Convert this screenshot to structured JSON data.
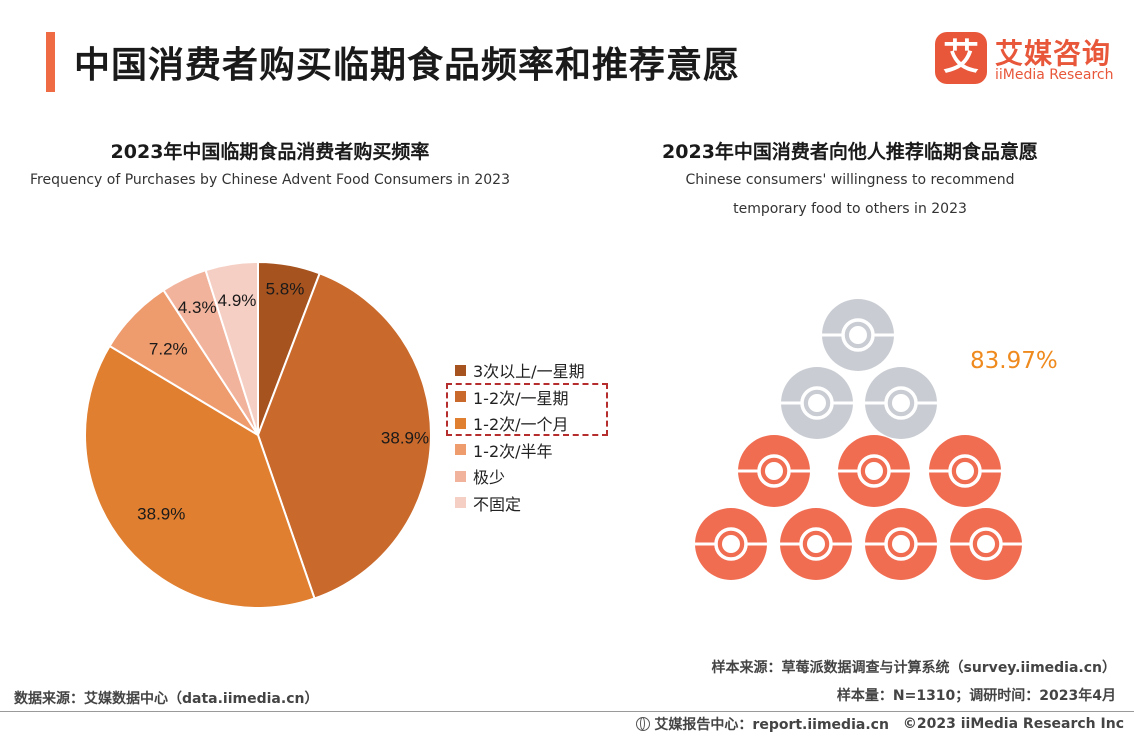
{
  "header": {
    "title": "中国消费者购买临期食品频率和推荐意愿",
    "logo_char": "艾",
    "logo_cn": "艾媒咨询",
    "logo_en": "iiMedia Research"
  },
  "left_chart": {
    "title": "2023年中国临期食品消费者购买频率",
    "subtitle_en": "Frequency of Purchases by Chinese Advent Food Consumers in 2023"
  },
  "right_chart": {
    "title": "2023年中国消费者向他人推荐临期食品意愿",
    "subtitle_en_line1": "Chinese consumers' willingness to recommend",
    "subtitle_en_line2": "temporary food to others in 2023",
    "percentage_label": "83.97%"
  },
  "chart_data": [
    {
      "type": "pie",
      "title": "2023年中国临期食品消费者购买频率",
      "subtitle": "Frequency of Purchases by Chinese Advent Food Consumers in 2023",
      "categories": [
        "3次以上/一星期",
        "1-2次/一星期",
        "1-2次/一个月",
        "1-2次/半年",
        "极少",
        "不固定"
      ],
      "values": [
        5.8,
        38.9,
        38.9,
        7.2,
        4.3,
        4.9
      ],
      "labels": [
        "5.8%",
        "38.9%",
        "38.9%",
        "7.2%",
        "4.3%",
        "4.9%"
      ],
      "colors": [
        "#a6531f",
        "#c9692b",
        "#e07f30",
        "#ee9b6e",
        "#f2b39d",
        "#f5cfc4"
      ],
      "highlighted_legend": [
        "1-2次/一星期",
        "1-2次/一个月"
      ],
      "legend_position": "right"
    },
    {
      "type": "pictogram",
      "title": "2023年中国消费者向他人推荐临期食品意愿",
      "value": 83.97,
      "label": "83.97%",
      "icons_total": 10,
      "icons_highlighted": 7,
      "highlight_color": "#f06d52",
      "base_color": "#c9cdd3"
    }
  ],
  "sources": {
    "left": "数据来源：艾媒数据中心（data.iimedia.cn）",
    "sample_source": "样本来源：草莓派数据调查与计算系统（survey.iimedia.cn）",
    "sample_size": "样本量：N=1310；调研时间：2023年4月"
  },
  "footer": {
    "center": "艾媒报告中心：report.iimedia.cn",
    "copyright": "©2023  iiMedia Research  Inc"
  }
}
